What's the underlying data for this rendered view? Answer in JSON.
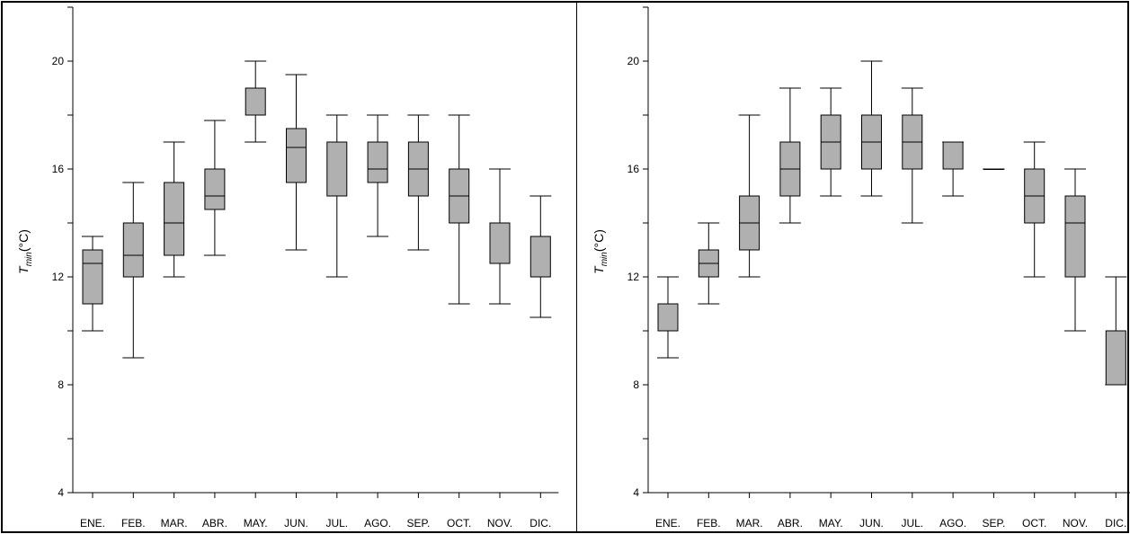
{
  "chart_data": [
    {
      "type": "box",
      "ylabel": "T_min(°C)",
      "ylabel_main": "T",
      "ylabel_sub": "min",
      "ylabel_rest": "(°C)",
      "ylim": [
        4,
        22
      ],
      "yticks": [
        4,
        8,
        12,
        16,
        20
      ],
      "categories": [
        "ENE.",
        "FEB.",
        "MAR.",
        "ABR.",
        "MAY.",
        "JUN.",
        "JUL.",
        "AGO.",
        "SEP.",
        "OCT.",
        "NOV.",
        "DIC."
      ],
      "boxes": [
        {
          "min": 10,
          "q1": 11,
          "median": 12.5,
          "q3": 13,
          "max": 13.5
        },
        {
          "min": 9,
          "q1": 12,
          "median": 12.8,
          "q3": 14,
          "max": 15.5
        },
        {
          "min": 12,
          "q1": 12.8,
          "median": 14,
          "q3": 15.5,
          "max": 17
        },
        {
          "min": 12.8,
          "q1": 14.5,
          "median": 15,
          "q3": 16,
          "max": 17.8
        },
        {
          "min": 17,
          "q1": 18,
          "median": 18,
          "q3": 19,
          "max": 20
        },
        {
          "min": 13,
          "q1": 15.5,
          "median": 16.8,
          "q3": 17.5,
          "max": 19.5
        },
        {
          "min": 12,
          "q1": 15,
          "median": 15,
          "q3": 17,
          "max": 18
        },
        {
          "min": 13.5,
          "q1": 15.5,
          "median": 16,
          "q3": 17,
          "max": 18
        },
        {
          "min": 13,
          "q1": 15,
          "median": 16,
          "q3": 17,
          "max": 18
        },
        {
          "min": 11,
          "q1": 14,
          "median": 15,
          "q3": 16,
          "max": 18
        },
        {
          "min": 11,
          "q1": 12.5,
          "median": 14,
          "q3": 14,
          "max": 16
        },
        {
          "min": 10.5,
          "q1": 12,
          "median": 12,
          "q3": 13.5,
          "max": 15
        }
      ],
      "box_color": "#b0b0b0",
      "grid": false
    },
    {
      "type": "box",
      "ylabel": "T_min(°C)",
      "ylabel_main": "T",
      "ylabel_sub": "min",
      "ylabel_rest": "(°C)",
      "ylim": [
        4,
        22
      ],
      "yticks": [
        4,
        8,
        12,
        16,
        20
      ],
      "categories": [
        "ENE.",
        "FEB.",
        "MAR.",
        "ABR.",
        "MAY.",
        "JUN.",
        "JUL.",
        "AGO.",
        "SEP.",
        "OCT.",
        "NOV.",
        "DIC."
      ],
      "boxes": [
        {
          "min": 9,
          "q1": 10,
          "median": 10,
          "q3": 11,
          "max": 12
        },
        {
          "min": 11,
          "q1": 12,
          "median": 12.5,
          "q3": 13,
          "max": 14
        },
        {
          "min": 12,
          "q1": 13,
          "median": 14,
          "q3": 15,
          "max": 18
        },
        {
          "min": 14,
          "q1": 15,
          "median": 16,
          "q3": 17,
          "max": 19
        },
        {
          "min": 15,
          "q1": 16,
          "median": 17,
          "q3": 18,
          "max": 19
        },
        {
          "min": 15,
          "q1": 16,
          "median": 17,
          "q3": 18,
          "max": 20
        },
        {
          "min": 14,
          "q1": 16,
          "median": 17,
          "q3": 18,
          "max": 19
        },
        {
          "min": 15,
          "q1": 16,
          "median": 16,
          "q3": 17,
          "max": 17
        },
        {
          "min": 16,
          "q1": 16,
          "median": 16,
          "q3": 16,
          "max": 16
        },
        {
          "min": 12,
          "q1": 14,
          "median": 15,
          "q3": 16,
          "max": 17
        },
        {
          "min": 10,
          "q1": 12,
          "median": 14,
          "q3": 15,
          "max": 16
        },
        {
          "min": 8,
          "q1": 8,
          "median": 8,
          "q3": 10,
          "max": 12
        }
      ],
      "box_color": "#b0b0b0",
      "grid": false
    }
  ]
}
